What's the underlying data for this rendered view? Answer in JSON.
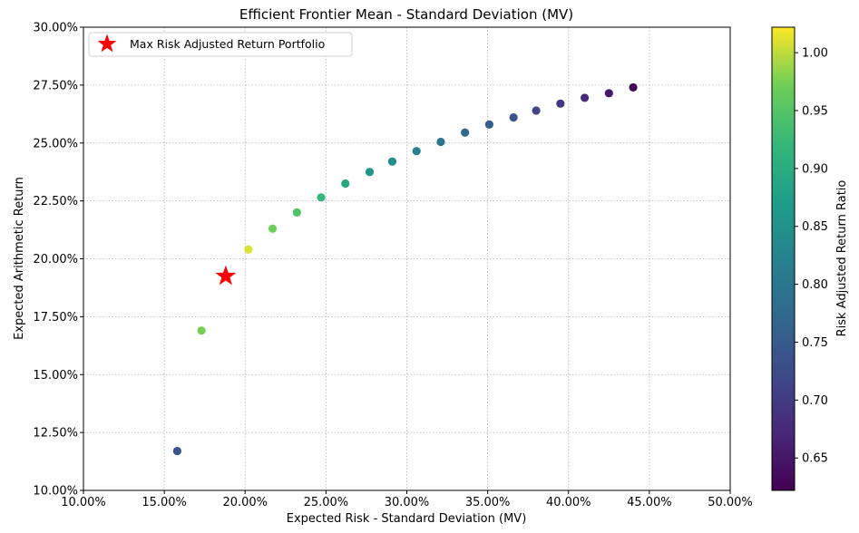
{
  "chart_data": {
    "type": "scatter",
    "title": "Efficient Frontier Mean - Standard Deviation (MV)",
    "xlabel": "Expected Risk - Standard Deviation (MV)",
    "ylabel": "Expected Arithmetic Return",
    "xlim": [
      0.1,
      0.5
    ],
    "ylim": [
      0.1,
      0.3
    ],
    "xticks": [
      0.1,
      0.15,
      0.2,
      0.25,
      0.3,
      0.35,
      0.4,
      0.45,
      0.5
    ],
    "xtick_labels": [
      "10.00%",
      "15.00%",
      "20.00%",
      "25.00%",
      "30.00%",
      "35.00%",
      "40.00%",
      "45.00%",
      "50.00%"
    ],
    "yticks": [
      0.1,
      0.125,
      0.15,
      0.175,
      0.2,
      0.225,
      0.25,
      0.275,
      0.3
    ],
    "ytick_labels": [
      "10.00%",
      "12.50%",
      "15.00%",
      "17.50%",
      "20.00%",
      "22.50%",
      "25.00%",
      "27.50%",
      "30.00%"
    ],
    "grid": true,
    "points": [
      {
        "x": 0.158,
        "y": 0.117,
        "ratio": 0.74
      },
      {
        "x": 0.173,
        "y": 0.169,
        "ratio": 0.975
      },
      {
        "x": 0.202,
        "y": 0.204,
        "ratio": 1.01
      },
      {
        "x": 0.217,
        "y": 0.213,
        "ratio": 0.97
      },
      {
        "x": 0.232,
        "y": 0.22,
        "ratio": 0.945
      },
      {
        "x": 0.247,
        "y": 0.2265,
        "ratio": 0.92
      },
      {
        "x": 0.262,
        "y": 0.2325,
        "ratio": 0.89
      },
      {
        "x": 0.277,
        "y": 0.2375,
        "ratio": 0.86
      },
      {
        "x": 0.291,
        "y": 0.242,
        "ratio": 0.84
      },
      {
        "x": 0.306,
        "y": 0.2465,
        "ratio": 0.815
      },
      {
        "x": 0.321,
        "y": 0.2505,
        "ratio": 0.795
      },
      {
        "x": 0.336,
        "y": 0.2545,
        "ratio": 0.775
      },
      {
        "x": 0.351,
        "y": 0.258,
        "ratio": 0.755
      },
      {
        "x": 0.366,
        "y": 0.261,
        "ratio": 0.735
      },
      {
        "x": 0.38,
        "y": 0.264,
        "ratio": 0.715
      },
      {
        "x": 0.395,
        "y": 0.267,
        "ratio": 0.695
      },
      {
        "x": 0.41,
        "y": 0.2695,
        "ratio": 0.675
      },
      {
        "x": 0.425,
        "y": 0.2715,
        "ratio": 0.655
      },
      {
        "x": 0.44,
        "y": 0.274,
        "ratio": 0.625
      }
    ],
    "highlight": {
      "x": 0.188,
      "y": 0.1925,
      "label": "Max Risk Adjusted Return Portfolio",
      "color": "#ff0000"
    },
    "legend_position": "top-left",
    "colorbar": {
      "label": "Risk Adjusted Return Ratio",
      "colormap": "viridis",
      "range": [
        0.622,
        1.022
      ],
      "ticks": [
        0.65,
        0.7,
        0.75,
        0.8,
        0.85,
        0.9,
        0.95,
        1.0
      ],
      "tick_labels": [
        "0.65",
        "0.70",
        "0.75",
        "0.80",
        "0.85",
        "0.90",
        "0.95",
        "1.00"
      ]
    }
  }
}
